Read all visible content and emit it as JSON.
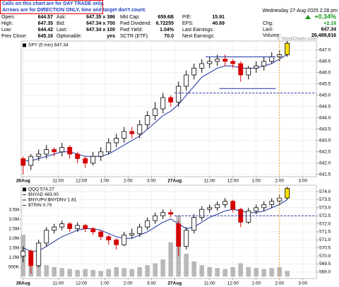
{
  "header": {
    "notice": [
      "Calls on this chart are for DAY TRADE only.",
      "Arrows are for DIRECTION ONLY, time and target don't count."
    ],
    "timestamp": "Wednesday 27-Aug-2025 2:28 pm",
    "quote": [
      [
        [
          "Open:",
          "644.57"
        ],
        [
          "Ask:",
          "647.35 x 386"
        ],
        [
          "Mkt Cap:",
          "659.6B"
        ],
        [
          "P/E:",
          "15.91"
        ]
      ],
      [
        [
          "High:",
          "647.35"
        ],
        [
          "Bid:",
          "647.34 x 700"
        ],
        [
          "Fwd Dividend:",
          "6.72255"
        ],
        [
          "EPS:",
          "40.69"
        ]
      ],
      [
        [
          "Low:",
          "644.42"
        ],
        [
          "Last:",
          "647.34 x 100"
        ],
        [
          "Fwd Yield:",
          "1.04%"
        ],
        [
          "Last Earnings:"
        ]
      ],
      [
        [
          "Prev Close:",
          "645.16"
        ],
        [
          "Optionable:",
          "yes"
        ],
        [
          "SCTR (ETF):",
          "70.0"
        ],
        [
          "Next Earnings:"
        ]
      ]
    ],
    "change_pct": "+0.34%",
    "summary": [
      [
        "Chg:",
        "+2.18"
      ],
      [
        "Last:",
        "647.34"
      ],
      [
        "Volume:",
        "26,489,816"
      ]
    ]
  },
  "chart_data": [
    {
      "type": "candlestick",
      "legend": [
        "SPY (5 min) 647.34"
      ],
      "credit": "© StockCharts.com",
      "x": [
        0,
        4,
        8,
        12,
        16,
        20,
        24,
        28,
        32,
        36,
        40,
        44,
        48,
        52,
        56,
        60,
        64,
        68,
        72,
        76,
        80,
        84,
        88,
        92,
        96,
        100,
        104,
        108,
        112,
        116,
        120,
        124,
        128,
        132,
        136
      ],
      "open": [
        642.2,
        641.9,
        642.3,
        642.4,
        642.6,
        642.5,
        642.7,
        642.4,
        642.2,
        642.0,
        642.3,
        642.5,
        642.9,
        643.1,
        643.4,
        643.3,
        643.7,
        644.1,
        644.4,
        644.9,
        644.7,
        645.4,
        645.9,
        646.2,
        646.4,
        646.5,
        646.6,
        646.5,
        646.4,
        645.9,
        646.2,
        646.3,
        646.5,
        646.7,
        646.8
      ],
      "high": [
        642.3,
        642.4,
        642.6,
        642.8,
        642.7,
        642.9,
        642.8,
        642.5,
        642.3,
        642.5,
        642.7,
        643.1,
        643.3,
        643.6,
        643.6,
        643.9,
        644.3,
        644.7,
        645.1,
        645.0,
        645.6,
        646.1,
        646.4,
        646.6,
        646.7,
        646.8,
        646.8,
        646.6,
        646.5,
        646.3,
        646.5,
        646.7,
        646.9,
        647.0,
        647.4
      ],
      "low": [
        641.5,
        641.7,
        642.1,
        642.2,
        642.3,
        642.3,
        642.2,
        642.0,
        641.8,
        641.9,
        642.1,
        642.4,
        642.7,
        642.9,
        643.1,
        643.1,
        643.5,
        643.9,
        644.2,
        644.5,
        644.5,
        645.2,
        645.7,
        646.0,
        646.2,
        646.3,
        646.3,
        646.2,
        645.6,
        645.7,
        646.0,
        646.1,
        646.4,
        646.5,
        646.7
      ],
      "close": [
        641.9,
        642.3,
        642.4,
        642.6,
        642.5,
        642.7,
        642.4,
        642.2,
        642.0,
        642.3,
        642.5,
        642.9,
        643.1,
        643.4,
        643.3,
        643.7,
        644.1,
        644.4,
        644.9,
        644.7,
        645.4,
        645.9,
        646.2,
        646.4,
        646.5,
        646.6,
        646.5,
        646.4,
        645.9,
        646.2,
        646.3,
        646.5,
        646.7,
        646.8,
        647.3
      ],
      "up_color": "#000000",
      "down_color": "#d40000",
      "highlight_last": "#ffe000",
      "ma": {
        "color": "#1c2f9e",
        "values": [
          642.1,
          642.1,
          642.2,
          642.3,
          642.4,
          642.5,
          642.5,
          642.4,
          642.3,
          642.3,
          642.3,
          642.4,
          642.6,
          642.8,
          643.0,
          643.2,
          643.5,
          643.8,
          644.1,
          644.3,
          644.6,
          645.0,
          645.4,
          645.8,
          646.0,
          646.2,
          646.3,
          646.3,
          646.2,
          646.2,
          646.2,
          646.3,
          646.4,
          646.6,
          646.8
        ]
      },
      "hlines": [
        {
          "value": 646.7,
          "x": [
            94,
            130
          ],
          "color": "#1c2f9e",
          "dash": false
        },
        {
          "value": 645.3,
          "x": [
            101,
            130
          ],
          "color": "#1c2f9e",
          "dash": false
        },
        {
          "value": 645.1,
          "x": [
            78,
            151
          ],
          "color": "#1c2f9e",
          "dash": true
        }
      ],
      "vline": {
        "value": 132,
        "color": "#f0a020"
      },
      "xlim": [
        -1,
        151
      ],
      "xticks": [
        {
          "value": 0,
          "label": "26Aug"
        },
        {
          "value": 18,
          "label": "11:00"
        },
        {
          "value": 30,
          "label": "12:00"
        },
        {
          "value": 42,
          "label": "1:00"
        },
        {
          "value": 54,
          "label": "2:00"
        },
        {
          "value": 66,
          "label": "3:00"
        },
        {
          "value": 78,
          "label": "27Aug"
        },
        {
          "value": 96,
          "label": "11:00"
        },
        {
          "value": 108,
          "label": "12:00"
        },
        {
          "value": 120,
          "label": "1:00"
        },
        {
          "value": 132,
          "label": "2:00"
        },
        {
          "value": 144,
          "label": "3:00"
        }
      ],
      "ylim": [
        641.4,
        647.4
      ],
      "yticks": [
        {
          "value": 647,
          "label": "647.0"
        },
        646.5,
        {
          "value": 646,
          "label": "646.0"
        },
        645.5,
        {
          "value": 645,
          "label": "645.0"
        },
        644.5,
        {
          "value": 644,
          "label": "644.0"
        },
        643.5,
        {
          "value": 643,
          "label": "643.0"
        },
        642.5,
        {
          "value": 642,
          "label": "642.0"
        },
        641.5
      ],
      "grid": true
    },
    {
      "type": "candlestick",
      "legend": [
        "QQQ 574.27",
        "$NYAD 483.00",
        "$NYUPV:$NYDNV 1.81",
        "$TRIN 0.79"
      ],
      "x": [
        0,
        4,
        8,
        12,
        16,
        20,
        24,
        28,
        32,
        36,
        40,
        44,
        48,
        52,
        56,
        60,
        64,
        68,
        72,
        76,
        80,
        84,
        88,
        92,
        96,
        100,
        104,
        108,
        112,
        116,
        120,
        124,
        128,
        132,
        136
      ],
      "open": [
        570.0,
        570.3,
        569.4,
        570.8,
        571.6,
        571.8,
        572.0,
        571.7,
        571.9,
        571.7,
        571.5,
        571.2,
        571.0,
        570.7,
        571.3,
        571.4,
        571.8,
        572.2,
        572.5,
        572.7,
        572.0,
        570.6,
        571.6,
        572.4,
        572.9,
        573.0,
        573.2,
        573.4,
        572.9,
        572.1,
        572.8,
        573.0,
        573.2,
        573.4,
        573.6
      ],
      "high": [
        570.6,
        570.4,
        571.0,
        571.8,
        572.0,
        572.2,
        572.1,
        572.1,
        572.0,
        571.8,
        571.6,
        571.3,
        571.1,
        571.5,
        571.7,
        572.0,
        572.4,
        572.7,
        572.9,
        572.9,
        572.2,
        571.8,
        572.6,
        573.1,
        573.2,
        573.4,
        573.6,
        573.5,
        573.0,
        573.0,
        573.2,
        573.4,
        573.6,
        573.8,
        574.3
      ],
      "low": [
        569.6,
        568.9,
        569.3,
        570.6,
        571.4,
        571.6,
        571.5,
        571.5,
        571.5,
        571.3,
        571.0,
        570.7,
        570.4,
        570.6,
        571.1,
        571.2,
        571.6,
        572.0,
        572.3,
        572.4,
        570.0,
        570.4,
        571.4,
        572.2,
        572.7,
        572.8,
        573.0,
        572.7,
        571.8,
        572.0,
        572.6,
        572.8,
        573.0,
        573.2,
        573.5
      ],
      "close": [
        570.3,
        569.4,
        570.8,
        571.6,
        571.8,
        572.0,
        571.7,
        571.9,
        571.7,
        571.5,
        571.2,
        571.0,
        570.7,
        571.3,
        571.4,
        571.8,
        572.2,
        572.5,
        572.7,
        572.6,
        570.6,
        571.6,
        572.4,
        572.9,
        573.0,
        573.2,
        573.4,
        572.9,
        572.1,
        572.8,
        573.0,
        573.2,
        573.4,
        573.6,
        574.2
      ],
      "up_color": "#000000",
      "down_color": "#d40000",
      "highlight_last": "#ffe000",
      "ma": {
        "color": "#1c2f9e",
        "values": [
          570.5,
          570.3,
          570.3,
          570.6,
          570.9,
          571.2,
          571.4,
          571.6,
          571.7,
          571.7,
          571.6,
          571.4,
          571.2,
          571.1,
          571.1,
          571.3,
          571.5,
          571.8,
          572.1,
          572.3,
          572.0,
          571.7,
          571.8,
          572.1,
          572.4,
          572.6,
          572.8,
          572.9,
          572.8,
          572.7,
          572.7,
          572.8,
          573.0,
          573.2,
          573.5
        ]
      },
      "volume": [
        2200000,
        1000000,
        700000,
        600000,
        500000,
        450000,
        400000,
        350000,
        400000,
        350000,
        300000,
        400000,
        500000,
        450000,
        400000,
        500000,
        600000,
        700000,
        900000,
        1800000,
        3200000,
        1200000,
        800000,
        600000,
        500000,
        450000,
        400000,
        500000,
        700000,
        500000,
        450000,
        400000,
        450000,
        500000,
        300000
      ],
      "volume_color": "#a8a8a8",
      "hlines": [
        {
          "value": 572.5,
          "x": [
            78,
            151
          ],
          "color": "#1c2f9e",
          "dash": true
        }
      ],
      "vline": {
        "value": 132,
        "color": "#f0a020"
      },
      "xlim": [
        -1,
        151
      ],
      "xticks": [
        {
          "value": 0,
          "label": "26Aug"
        },
        {
          "value": 18,
          "label": "11:00"
        },
        {
          "value": 30,
          "label": "12:00"
        },
        {
          "value": 42,
          "label": "1:00"
        },
        {
          "value": 54,
          "label": "2:00"
        },
        {
          "value": 66,
          "label": "3:00"
        },
        {
          "value": 78,
          "label": "27Aug"
        },
        {
          "value": 96,
          "label": "11:00"
        },
        {
          "value": 108,
          "label": "12:00"
        },
        {
          "value": 120,
          "label": "1:00"
        },
        {
          "value": 132,
          "label": "2:00"
        },
        {
          "value": 144,
          "label": "3:00"
        }
      ],
      "ylim": [
        568.6,
        574.4
      ],
      "yticks": [
        {
          "value": 574,
          "label": "574.0"
        },
        573.5,
        {
          "value": 573,
          "label": "573.0"
        },
        572.5,
        {
          "value": 572,
          "label": "572.0"
        },
        571.5,
        {
          "value": 571,
          "label": "571.0"
        },
        570.5,
        {
          "value": 570,
          "label": "570.0"
        },
        569.5,
        {
          "value": 569,
          "label": "569.0"
        }
      ],
      "y2lim": [
        -100000,
        4800000
      ],
      "y2ticks": [
        {
          "value": 3500000,
          "label": "3.5M"
        },
        {
          "value": 3000000,
          "label": "3.0M"
        },
        {
          "value": 2500000,
          "label": "2.5M"
        },
        {
          "value": 2000000,
          "label": "2.0M"
        },
        {
          "value": 1500000,
          "label": "1.5M"
        },
        {
          "value": 1000000,
          "label": "1.0M"
        },
        {
          "value": 500000,
          "label": "500K"
        }
      ],
      "grid": true
    }
  ]
}
